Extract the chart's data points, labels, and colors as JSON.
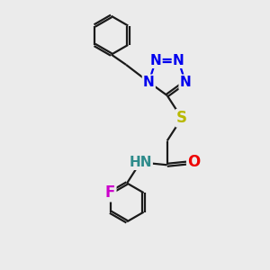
{
  "bg_color": "#ebebeb",
  "bond_color": "#1a1a1a",
  "N_color": "#0000ee",
  "S_color": "#b8b800",
  "O_color": "#ee0000",
  "F_color": "#cc00cc",
  "H_color": "#2e8b8b",
  "bond_width": 1.6,
  "font_size_atom": 11,
  "fig_size": [
    3.0,
    3.0
  ],
  "dpi": 100,
  "xlim": [
    0,
    10
  ],
  "ylim": [
    0,
    10
  ]
}
